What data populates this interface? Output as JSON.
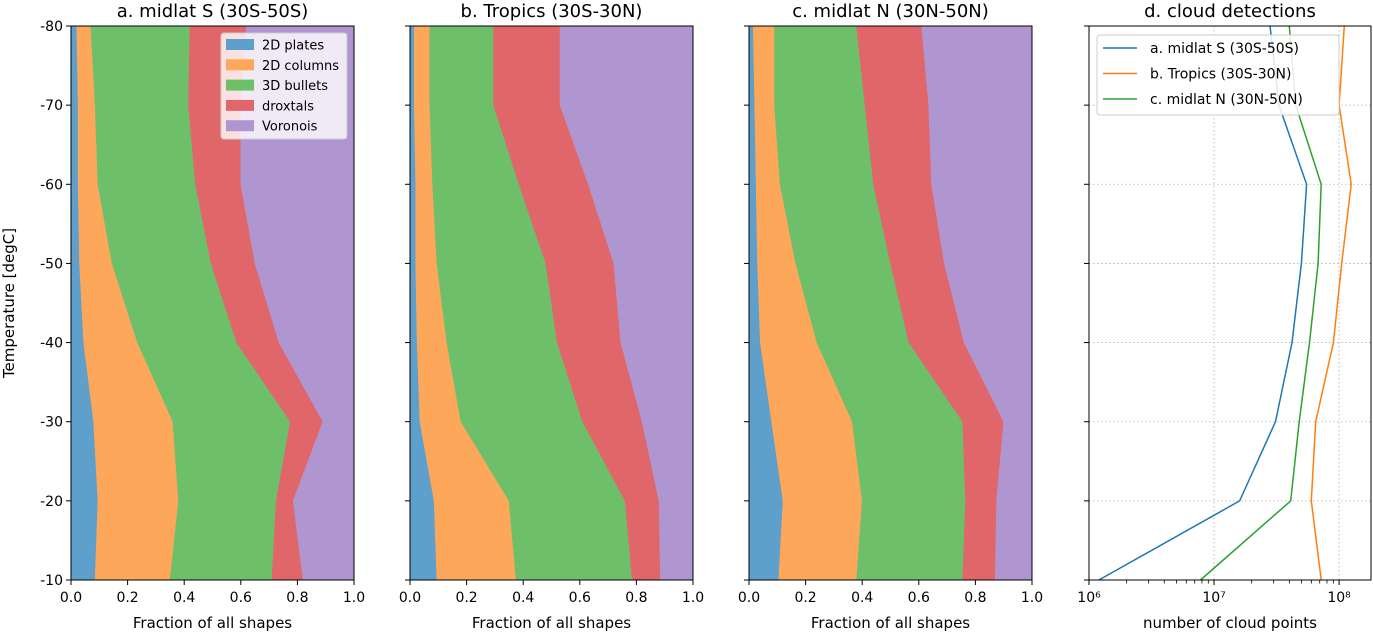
{
  "chart_data": [
    {
      "type": "area",
      "title": "a. midlat S (30S-50S)",
      "xlabel": "Fraction of all shapes",
      "ylabel": "Temperature [degC]",
      "xlim": [
        0.0,
        1.0
      ],
      "ylim": [
        -80,
        -10
      ],
      "x_ticks": [
        "0.0",
        "0.2",
        "0.4",
        "0.6",
        "0.8",
        "1.0"
      ],
      "y_ticks": [
        "-80",
        "-70",
        "-60",
        "-50",
        "-40",
        "-30",
        "-20",
        "-10"
      ],
      "stacked": true,
      "orientation": "horizontal",
      "legend_position": "top-right",
      "temperatures": [
        -80,
        -70,
        -60,
        -50,
        -40,
        -30,
        -20,
        -10
      ],
      "series": [
        {
          "name": "2D plates",
          "color": "#5f9fcb",
          "values": [
            0.02,
            0.025,
            0.025,
            0.03,
            0.045,
            0.08,
            0.095,
            0.085
          ]
        },
        {
          "name": "2D columns",
          "color": "#fda75a",
          "values": [
            0.05,
            0.06,
            0.07,
            0.115,
            0.19,
            0.28,
            0.285,
            0.265
          ]
        },
        {
          "name": "3D bullets",
          "color": "#6ebf6a",
          "values": [
            0.35,
            0.33,
            0.345,
            0.35,
            0.35,
            0.415,
            0.345,
            0.36
          ]
        },
        {
          "name": "droxtals",
          "color": "#e1666a",
          "values": [
            0.2,
            0.185,
            0.16,
            0.155,
            0.15,
            0.115,
            0.06,
            0.11
          ]
        },
        {
          "name": "Voronois",
          "color": "#b096d0",
          "values": [
            0.38,
            0.4,
            0.4,
            0.35,
            0.265,
            0.11,
            0.215,
            0.18
          ]
        }
      ]
    },
    {
      "type": "area",
      "title": "b. Tropics (30S-30N)",
      "xlabel": "Fraction of all shapes",
      "xlim": [
        0.0,
        1.0
      ],
      "ylim": [
        -80,
        -10
      ],
      "x_ticks": [
        "0.0",
        "0.2",
        "0.4",
        "0.6",
        "0.8",
        "1.0"
      ],
      "stacked": true,
      "orientation": "horizontal",
      "temperatures": [
        -80,
        -70,
        -60,
        -50,
        -40,
        -30,
        -20,
        -10
      ],
      "series": [
        {
          "name": "2D plates",
          "color": "#5f9fcb",
          "values": [
            0.015,
            0.015,
            0.02,
            0.02,
            0.025,
            0.035,
            0.085,
            0.095
          ]
        },
        {
          "name": "2D columns",
          "color": "#fda75a",
          "values": [
            0.055,
            0.055,
            0.06,
            0.075,
            0.105,
            0.145,
            0.265,
            0.28
          ]
        },
        {
          "name": "3D bullets",
          "color": "#6ebf6a",
          "values": [
            0.225,
            0.225,
            0.305,
            0.385,
            0.39,
            0.43,
            0.41,
            0.41
          ]
        },
        {
          "name": "droxtals",
          "color": "#e1666a",
          "values": [
            0.235,
            0.235,
            0.245,
            0.24,
            0.225,
            0.21,
            0.12,
            0.1
          ]
        },
        {
          "name": "Voronois",
          "color": "#b096d0",
          "values": [
            0.47,
            0.47,
            0.37,
            0.28,
            0.255,
            0.18,
            0.12,
            0.115
          ]
        }
      ]
    },
    {
      "type": "area",
      "title": "c. midlat N (30N-50N)",
      "xlabel": "Fraction of all shapes",
      "xlim": [
        0.0,
        1.0
      ],
      "ylim": [
        -80,
        -10
      ],
      "x_ticks": [
        "0.0",
        "0.2",
        "0.4",
        "0.6",
        "0.8",
        "1.0"
      ],
      "stacked": true,
      "orientation": "horizontal",
      "temperatures": [
        -80,
        -70,
        -60,
        -50,
        -40,
        -30,
        -20,
        -10
      ],
      "series": [
        {
          "name": "2D plates",
          "color": "#5f9fcb",
          "values": [
            0.015,
            0.02,
            0.025,
            0.03,
            0.04,
            0.08,
            0.12,
            0.105
          ]
        },
        {
          "name": "2D columns",
          "color": "#fda75a",
          "values": [
            0.075,
            0.07,
            0.085,
            0.135,
            0.2,
            0.285,
            0.28,
            0.275
          ]
        },
        {
          "name": "3D bullets",
          "color": "#6ebf6a",
          "values": [
            0.29,
            0.32,
            0.33,
            0.335,
            0.325,
            0.39,
            0.365,
            0.375
          ]
        },
        {
          "name": "droxtals",
          "color": "#e1666a",
          "values": [
            0.23,
            0.225,
            0.205,
            0.19,
            0.195,
            0.145,
            0.11,
            0.115
          ]
        },
        {
          "name": "Voronois",
          "color": "#b096d0",
          "values": [
            0.39,
            0.365,
            0.355,
            0.31,
            0.24,
            0.1,
            0.125,
            0.13
          ]
        }
      ]
    },
    {
      "type": "line",
      "title": "d. cloud detections",
      "xlabel": "number of cloud points",
      "x_scale": "log",
      "xlim": [
        1000000,
        180000000
      ],
      "ylim": [
        -80,
        -10
      ],
      "x_ticks": [
        "10⁶",
        "10⁷",
        "10⁸"
      ],
      "grid": true,
      "legend_position": "top-left",
      "temperatures": [
        -80,
        -70,
        -60,
        -50,
        -40,
        -30,
        -20,
        -10
      ],
      "series": [
        {
          "name": "a. midlat S (30S-50S)",
          "color": "#1f77b4",
          "values": [
            28000000,
            33000000,
            55000000,
            50000000,
            42000000,
            31000000,
            16000000,
            1200000
          ]
        },
        {
          "name": "b. Tropics (30S-30N)",
          "color": "#ff7f0e",
          "values": [
            110000000,
            100000000,
            125000000,
            105000000,
            90000000,
            65000000,
            60000000,
            72000000
          ]
        },
        {
          "name": "c. midlat N (30N-50N)",
          "color": "#2ca02c",
          "values": [
            40000000,
            45000000,
            72000000,
            68000000,
            58000000,
            48000000,
            41000000,
            7800000
          ]
        }
      ]
    }
  ]
}
